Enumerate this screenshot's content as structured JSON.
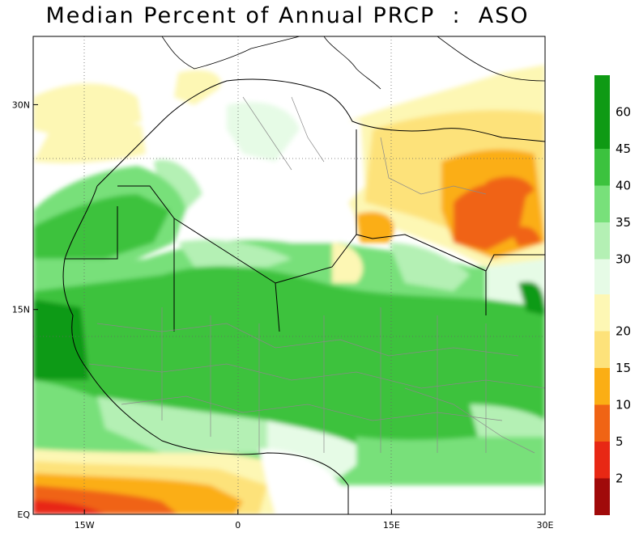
{
  "title": "Median Percent of Annual PRCP  :  ASO",
  "map": {
    "lon_range": [
      -20,
      30
    ],
    "lat_range": [
      0,
      35
    ],
    "x_ticks": [
      {
        "lon": -15,
        "label": "15W"
      },
      {
        "lon": 0,
        "label": "0"
      },
      {
        "lon": 15,
        "label": "15E"
      },
      {
        "lon": 30,
        "label": "30E"
      }
    ],
    "y_ticks": [
      {
        "lat": 0,
        "label": "EQ"
      },
      {
        "lat": 15,
        "label": "15N"
      },
      {
        "lat": 30,
        "label": "30N"
      }
    ],
    "grid": "dotted"
  },
  "legend": {
    "upper": [
      {
        "label": "60",
        "color": "#0f9a14"
      },
      {
        "label": "45",
        "color": "#3cc23e"
      },
      {
        "label": "40",
        "color": "#78e07a"
      },
      {
        "label": "35",
        "color": "#b4f0b4"
      },
      {
        "label": "30",
        "color": "#e6fbe6"
      }
    ],
    "upper_top_color": "#0f9a14",
    "lower": [
      {
        "label": "20",
        "color": "#fdf7b4"
      },
      {
        "label": "15",
        "color": "#fde27a"
      },
      {
        "label": "10",
        "color": "#fbae14"
      },
      {
        "label": "5",
        "color": "#f06414"
      },
      {
        "label": "2",
        "color": "#e82814"
      }
    ],
    "lower_bottom_color": "#a00a0a"
  }
}
